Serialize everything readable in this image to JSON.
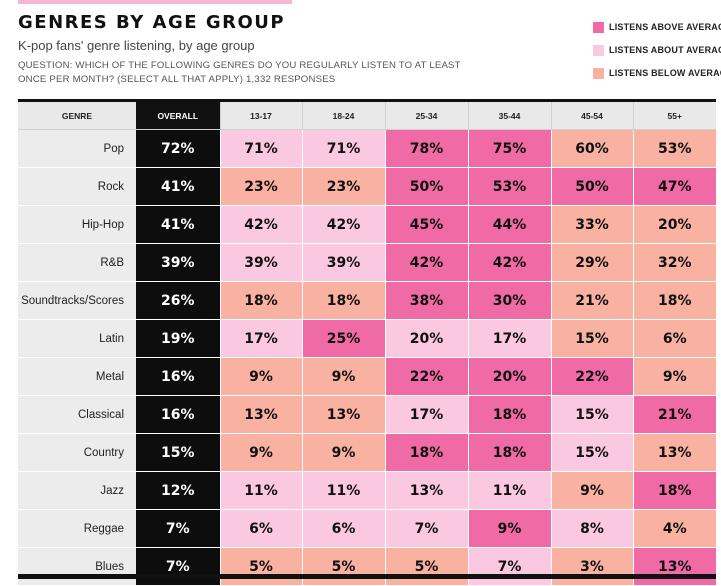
{
  "header": {
    "title": "GENRES BY AGE GROUP",
    "subtitle": "K-pop fans' genre listening, by age group",
    "question": "QUESTION: WHICH OF THE FOLLOWING GENRES DO YOU REGULARLY LISTEN TO AT LEAST ONCE PER MONTH? (SELECT ALL THAT APPLY) 1,332 RESPONSES"
  },
  "legend": [
    {
      "key": "above",
      "label": "LISTENS ABOVE AVERAGE",
      "color": "#f06aa6"
    },
    {
      "key": "about",
      "label": "LISTENS ABOUT AVERAGE",
      "color": "#fbc8e1"
    },
    {
      "key": "below",
      "label": "LISTENS BELOW AVERAGE",
      "color": "#f9b1a1"
    }
  ],
  "colors": {
    "above": "#f06aa6",
    "about": "#fbc8e1",
    "below": "#f9b1a1",
    "overall_bg": "#0d0d0d",
    "genre_bg": "#ececec"
  },
  "chart_data": {
    "type": "table",
    "title": "GENRES BY AGE GROUP",
    "subtitle": "K-pop fans' genre listening, by age group",
    "columns": [
      "GENRE",
      "OVERALL",
      "13-17",
      "18-24",
      "25-34",
      "35-44",
      "45-54",
      "55+"
    ],
    "unit": "%",
    "rows": [
      {
        "genre": "Pop",
        "overall": 72,
        "values": [
          71,
          71,
          78,
          75,
          60,
          53
        ],
        "levels": [
          "about",
          "about",
          "above",
          "above",
          "below",
          "below"
        ]
      },
      {
        "genre": "Rock",
        "overall": 41,
        "values": [
          23,
          23,
          50,
          53,
          50,
          47
        ],
        "levels": [
          "below",
          "below",
          "above",
          "above",
          "above",
          "above"
        ]
      },
      {
        "genre": "Hip-Hop",
        "overall": 41,
        "values": [
          42,
          42,
          45,
          44,
          33,
          20
        ],
        "levels": [
          "about",
          "about",
          "above",
          "above",
          "below",
          "below"
        ]
      },
      {
        "genre": "R&B",
        "overall": 39,
        "values": [
          39,
          39,
          42,
          42,
          29,
          32
        ],
        "levels": [
          "about",
          "about",
          "above",
          "above",
          "below",
          "below"
        ]
      },
      {
        "genre": "Soundtracks/Scores",
        "overall": 26,
        "values": [
          18,
          18,
          38,
          30,
          21,
          18
        ],
        "levels": [
          "below",
          "below",
          "above",
          "above",
          "below",
          "below"
        ]
      },
      {
        "genre": "Latin",
        "overall": 19,
        "values": [
          17,
          25,
          20,
          17,
          15,
          6
        ],
        "levels": [
          "about",
          "above",
          "about",
          "about",
          "below",
          "below"
        ]
      },
      {
        "genre": "Metal",
        "overall": 16,
        "values": [
          9,
          9,
          22,
          20,
          22,
          9
        ],
        "levels": [
          "below",
          "below",
          "above",
          "above",
          "above",
          "below"
        ]
      },
      {
        "genre": "Classical",
        "overall": 16,
        "values": [
          13,
          13,
          17,
          18,
          15,
          21
        ],
        "levels": [
          "below",
          "below",
          "about",
          "above",
          "about",
          "above"
        ]
      },
      {
        "genre": "Country",
        "overall": 15,
        "values": [
          9,
          9,
          18,
          18,
          15,
          13
        ],
        "levels": [
          "below",
          "below",
          "above",
          "above",
          "about",
          "below"
        ]
      },
      {
        "genre": "Jazz",
        "overall": 12,
        "values": [
          11,
          11,
          13,
          11,
          9,
          18
        ],
        "levels": [
          "about",
          "about",
          "about",
          "about",
          "below",
          "above"
        ]
      },
      {
        "genre": "Reggae",
        "overall": 7,
        "values": [
          6,
          6,
          7,
          9,
          8,
          4
        ],
        "levels": [
          "about",
          "about",
          "about",
          "above",
          "about",
          "below"
        ]
      },
      {
        "genre": "Blues",
        "overall": 7,
        "values": [
          5,
          5,
          5,
          7,
          3,
          13
        ],
        "levels": [
          "below",
          "below",
          "below",
          "about",
          "below",
          "above"
        ]
      }
    ]
  }
}
